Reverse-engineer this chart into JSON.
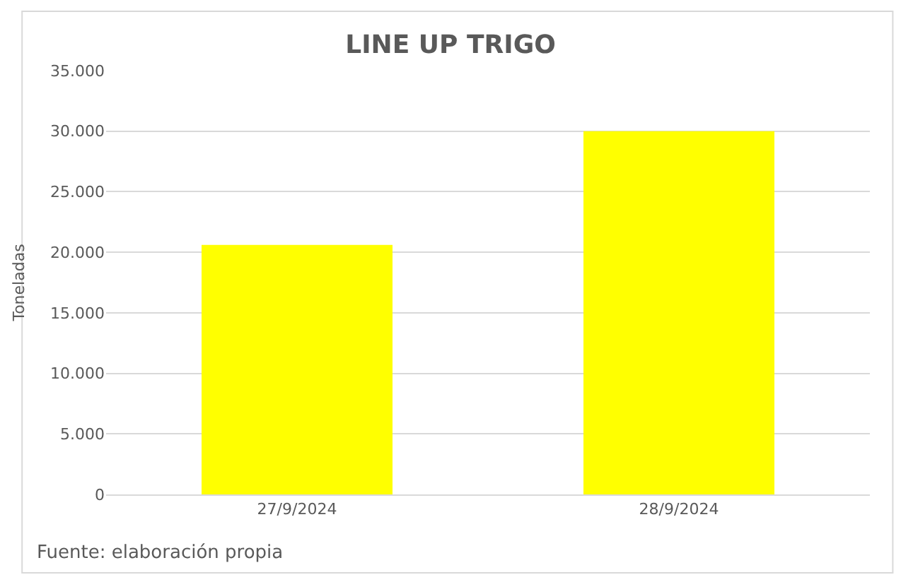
{
  "chart_data": {
    "type": "bar",
    "title": "LINE UP TRIGO",
    "ylabel": "Toneladas",
    "categories": [
      "27/9/2024",
      "28/9/2024"
    ],
    "values": [
      20600,
      30000
    ],
    "color": "#ffff00",
    "ylim": [
      0,
      35000
    ],
    "yticks": [
      {
        "value": 0,
        "label": "0"
      },
      {
        "value": 5000,
        "label": "5.000"
      },
      {
        "value": 10000,
        "label": "10.000"
      },
      {
        "value": 15000,
        "label": "15.000"
      },
      {
        "value": 20000,
        "label": "20.000"
      },
      {
        "value": 25000,
        "label": "25.000"
      },
      {
        "value": 30000,
        "label": "30.000"
      },
      {
        "value": 35000,
        "label": "35.000"
      }
    ],
    "grid": "y",
    "legend": false,
    "annotations": [
      "Fuente: elaboración propia"
    ]
  }
}
